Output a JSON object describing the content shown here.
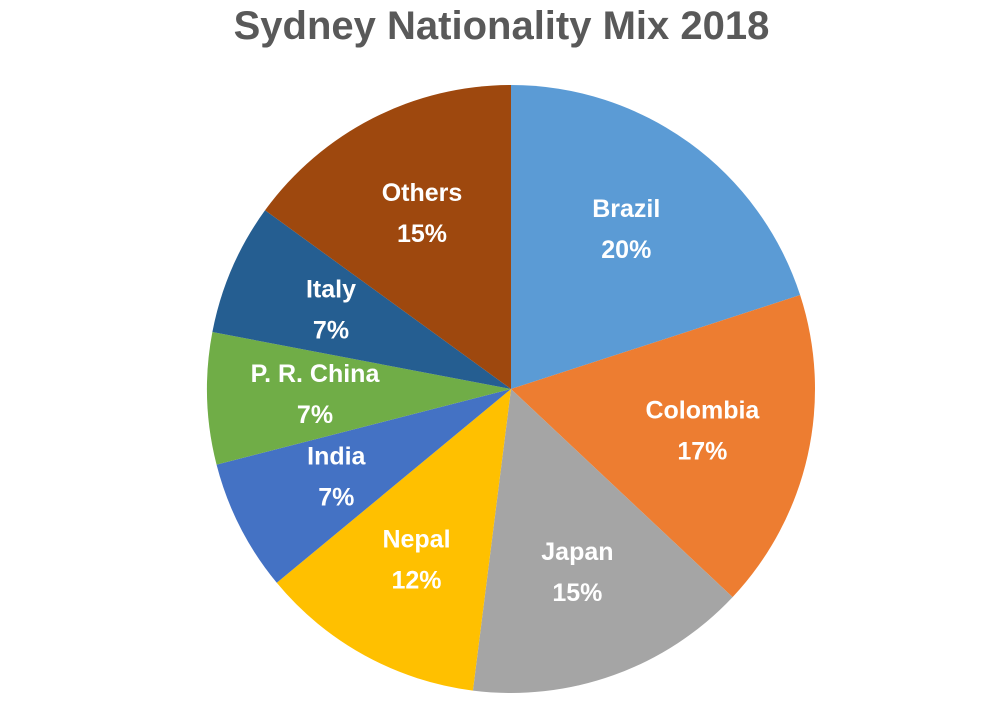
{
  "chart_data": {
    "type": "pie",
    "title": "Sydney Nationality Mix 2018",
    "slices": [
      {
        "label": "Brazil",
        "value": 20,
        "value_label": "20%",
        "color": "#5B9BD5"
      },
      {
        "label": "Colombia",
        "value": 17,
        "value_label": "17%",
        "color": "#ED7D31"
      },
      {
        "label": "Japan",
        "value": 15,
        "value_label": "15%",
        "color": "#A5A5A5"
      },
      {
        "label": "Nepal",
        "value": 12,
        "value_label": "12%",
        "color": "#FFC000"
      },
      {
        "label": "India",
        "value": 7,
        "value_label": "7%",
        "color": "#4472C4"
      },
      {
        "label": "P. R. China",
        "value": 7,
        "value_label": "7%",
        "color": "#70AD47"
      },
      {
        "label": "Italy",
        "value": 7,
        "value_label": "7%",
        "color": "#255E91"
      },
      {
        "label": "Others",
        "value": 15,
        "value_label": "15%",
        "color": "#9E480E"
      }
    ],
    "start_angle_deg": 0,
    "direction": "clockwise",
    "legend": "none",
    "data_labels": "inside"
  }
}
